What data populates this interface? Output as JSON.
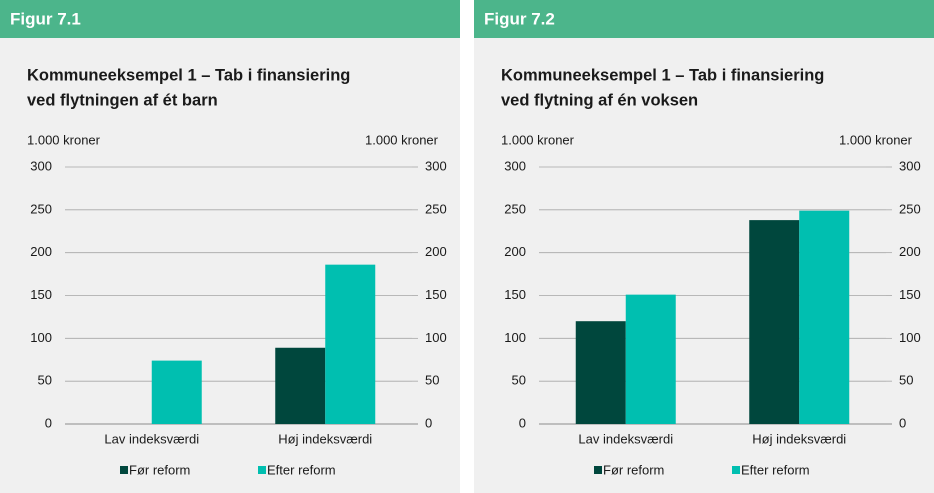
{
  "chart_data": [
    {
      "type": "bar",
      "figure_label": "Figur 7.1",
      "title": [
        "Kommuneeksempel 1 – Tab i finansiering",
        "ved flytningen af ét barn"
      ],
      "y_label": "1.000 kroner",
      "y2_label": "1.000 kroner",
      "categories": [
        "Lav indeksværdi",
        "Høj indeksværdi"
      ],
      "series": [
        {
          "name": "Før reform",
          "color": "#00473d",
          "values": [
            0,
            89
          ]
        },
        {
          "name": "Efter reform",
          "color": "#00bfb0",
          "values": [
            74,
            186
          ]
        }
      ],
      "ylim": [
        0,
        300
      ],
      "yticks": [
        0,
        50,
        100,
        150,
        200,
        250,
        300
      ],
      "y2lim": [
        0,
        300
      ],
      "y2ticks": [
        0,
        50,
        100,
        150,
        200,
        250,
        300
      ],
      "grid": true
    },
    {
      "type": "bar",
      "figure_label": "Figur 7.2",
      "title": [
        "Kommuneeksempel 1 – Tab i finansiering",
        "ved flytning af én voksen"
      ],
      "y_label": "1.000 kroner",
      "y2_label": "1.000 kroner",
      "categories": [
        "Lav indeksværdi",
        "Høj indeksværdi"
      ],
      "series": [
        {
          "name": "Før reform",
          "color": "#00473d",
          "values": [
            120,
            238
          ]
        },
        {
          "name": "Efter reform",
          "color": "#00bfb0",
          "values": [
            151,
            249
          ]
        }
      ],
      "ylim": [
        0,
        300
      ],
      "yticks": [
        0,
        50,
        100,
        150,
        200,
        250,
        300
      ],
      "y2lim": [
        0,
        300
      ],
      "y2ticks": [
        0,
        50,
        100,
        150,
        200,
        250,
        300
      ],
      "grid": true
    }
  ]
}
